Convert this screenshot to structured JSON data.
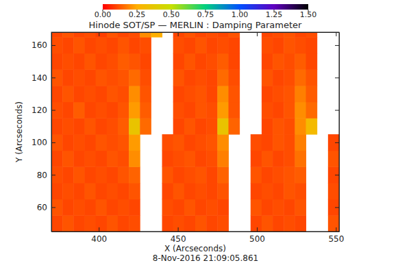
{
  "chart_data": {
    "type": "heatmap",
    "title": "Hinode SOT/SP — MERLIN : Damping Parameter",
    "x_label": "X (Arcseconds)",
    "y_label": "Y (Arcseconds)",
    "annotation": "8-Nov-2016 21:09:05.861",
    "xlim": [
      370,
      552
    ],
    "ylim": [
      45,
      168
    ],
    "xticks": [
      400,
      450,
      500,
      550
    ],
    "yticks": [
      60,
      80,
      100,
      120,
      140,
      160
    ],
    "x_edges": [
      370,
      377,
      384,
      391,
      398,
      405,
      412,
      419,
      426,
      433,
      440,
      447,
      454,
      461,
      468,
      475,
      482,
      489,
      496,
      503,
      510,
      517,
      524,
      531,
      538,
      545,
      552
    ],
    "y_edges": [
      45,
      55,
      65,
      75,
      85,
      95,
      105,
      115,
      125,
      135,
      145,
      155,
      165,
      168
    ],
    "z": [
      [
        0.1,
        0.12,
        0.1,
        0.11,
        0.1,
        0.12,
        0.1,
        0.11,
        null,
        null,
        0.1,
        0.11,
        0.1,
        0.12,
        0.1,
        0.11,
        null,
        null,
        0.1,
        0.12,
        0.1,
        0.11,
        0.1,
        null,
        null,
        0.12
      ],
      [
        0.12,
        0.1,
        0.11,
        0.1,
        0.12,
        0.1,
        0.11,
        0.1,
        null,
        null,
        0.11,
        0.1,
        0.12,
        0.1,
        0.11,
        0.1,
        null,
        null,
        0.12,
        0.1,
        0.11,
        0.1,
        0.12,
        null,
        null,
        0.1
      ],
      [
        0.1,
        0.11,
        0.1,
        0.12,
        0.1,
        0.11,
        0.1,
        0.12,
        null,
        null,
        0.1,
        0.12,
        0.1,
        0.11,
        0.1,
        0.12,
        null,
        null,
        0.1,
        0.11,
        0.1,
        0.12,
        0.11,
        null,
        null,
        0.11
      ],
      [
        0.11,
        0.1,
        0.12,
        0.1,
        0.11,
        0.1,
        0.12,
        0.14,
        null,
        null,
        0.12,
        0.1,
        0.11,
        0.12,
        0.1,
        0.14,
        null,
        null,
        0.12,
        0.1,
        0.11,
        0.12,
        0.13,
        null,
        null,
        0.1
      ],
      [
        0.1,
        0.12,
        0.1,
        0.11,
        0.1,
        0.12,
        0.11,
        0.2,
        null,
        null,
        0.1,
        0.11,
        0.12,
        0.1,
        0.11,
        0.18,
        null,
        null,
        0.1,
        0.12,
        0.1,
        0.11,
        0.16,
        null,
        null,
        0.12
      ],
      [
        0.12,
        0.1,
        0.11,
        0.1,
        0.12,
        0.11,
        0.12,
        0.22,
        null,
        null,
        0.11,
        0.12,
        0.1,
        0.11,
        0.12,
        0.2,
        null,
        null,
        0.11,
        0.1,
        0.12,
        0.11,
        0.18,
        null,
        null,
        0.1
      ],
      [
        0.1,
        0.11,
        0.1,
        0.12,
        0.1,
        0.11,
        0.13,
        0.35,
        0.15,
        null,
        null,
        0.1,
        0.12,
        0.1,
        0.11,
        0.35,
        0.14,
        null,
        null,
        0.1,
        0.12,
        0.11,
        0.2,
        0.3,
        null,
        null
      ],
      [
        0.11,
        0.1,
        0.13,
        0.1,
        0.11,
        0.1,
        0.12,
        0.22,
        0.13,
        null,
        null,
        0.11,
        0.1,
        0.12,
        0.11,
        0.22,
        0.12,
        null,
        null,
        0.11,
        0.1,
        0.12,
        0.2,
        0.15,
        null,
        null
      ],
      [
        0.1,
        0.12,
        0.1,
        0.11,
        0.1,
        0.12,
        0.11,
        0.2,
        0.12,
        null,
        null,
        0.1,
        0.11,
        0.12,
        0.1,
        0.2,
        0.12,
        null,
        null,
        0.1,
        0.11,
        0.12,
        0.18,
        0.13,
        null,
        null
      ],
      [
        0.12,
        0.1,
        0.11,
        0.1,
        0.12,
        0.11,
        0.12,
        0.15,
        0.11,
        null,
        null,
        0.12,
        0.1,
        0.11,
        0.1,
        0.15,
        0.11,
        null,
        null,
        0.12,
        0.1,
        0.11,
        0.15,
        0.12,
        null,
        null
      ],
      [
        0.1,
        0.11,
        0.1,
        0.12,
        0.1,
        0.11,
        0.13,
        0.12,
        0.1,
        null,
        null,
        0.1,
        0.12,
        0.1,
        0.11,
        0.13,
        0.1,
        null,
        null,
        0.1,
        0.12,
        0.11,
        0.13,
        0.1,
        null,
        null
      ],
      [
        0.11,
        0.1,
        0.12,
        0.1,
        0.11,
        0.1,
        0.12,
        0.1,
        0.11,
        null,
        null,
        0.11,
        0.1,
        0.12,
        0.1,
        0.11,
        0.1,
        null,
        null,
        0.11,
        0.1,
        0.12,
        0.11,
        0.1,
        null,
        null
      ],
      [
        0.1,
        0.12,
        0.1,
        0.11,
        0.09,
        0.12,
        0.1,
        0.11,
        0.2,
        0.25,
        null,
        0.1,
        0.12,
        0.1,
        0.11,
        0.1,
        0.12,
        null,
        null,
        0.1,
        0.11,
        0.12,
        0.1,
        0.11,
        null,
        null
      ]
    ],
    "colorbar": {
      "range": [
        0,
        1.5
      ],
      "ticks": [
        {
          "value": 0,
          "label": "0.00"
        },
        {
          "value": 0.25,
          "label": "0.25"
        },
        {
          "value": 0.5,
          "label": "0.50"
        },
        {
          "value": 0.75,
          "label": "0.75"
        },
        {
          "value": 1,
          "label": "1.00"
        },
        {
          "value": 1.25,
          "label": "1.25"
        },
        {
          "value": 1.5,
          "label": "1.50"
        }
      ],
      "colors": [
        "#ff0000",
        "#ffb000",
        "#c8e000",
        "#00d080",
        "#0050ff",
        "#6000c0",
        "#000000"
      ]
    }
  }
}
